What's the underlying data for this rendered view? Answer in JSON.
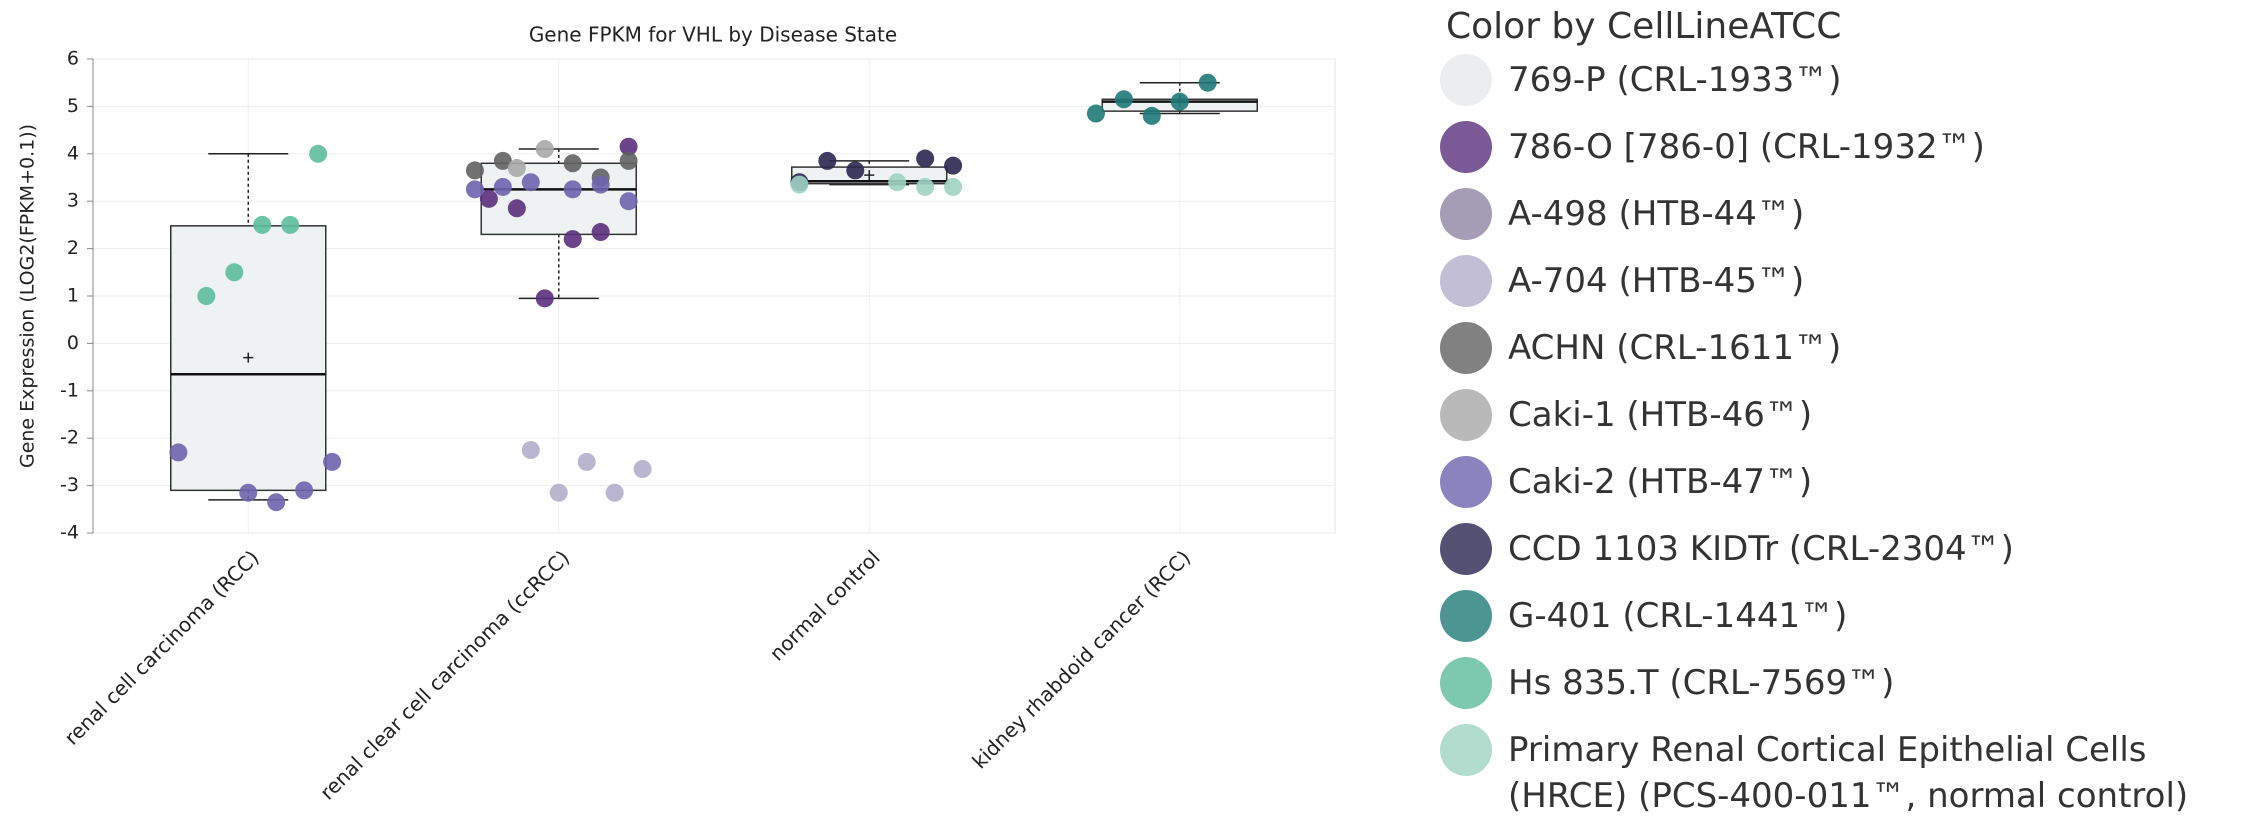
{
  "chart_data": {
    "type": "box",
    "title": "Gene FPKM for VHL by Disease State",
    "y_label": "Gene Expression (LOG2(FPKM+0.1))",
    "legend_title": "Color by CellLineATCC",
    "categories": [
      "renal cell carcinoma (RCC)",
      "renal clear cell carcinoma (ccRCC)",
      "normal control",
      "kidney rhabdoid cancer (RCC)"
    ],
    "boxes": [
      {
        "whislo": -3.3,
        "q1": -3.1,
        "med": -0.65,
        "q3": 2.48,
        "whishi": 4.0,
        "mean": -0.3
      },
      {
        "whislo": 0.95,
        "q1": 2.3,
        "med": 3.25,
        "q3": 3.8,
        "whishi": 4.1
      },
      {
        "whislo": 3.35,
        "q1": 3.37,
        "med": 3.42,
        "q3": 3.72,
        "whishi": 3.85,
        "mean": 3.55
      },
      {
        "whislo": 4.85,
        "q1": 4.9,
        "med": 5.1,
        "q3": 5.15,
        "whishi": 5.5,
        "mean": 5.1
      }
    ],
    "series": [
      {
        "name": "769-P (CRL-1933™)",
        "color": "#e6e8eb",
        "points": []
      },
      {
        "name": "786-O [786-0] (CRL-1932™)",
        "color": "#5a2f7c",
        "points": [
          {
            "category": 1,
            "value": 4.15
          },
          {
            "category": 1,
            "value": 2.35
          },
          {
            "category": 1,
            "value": 2.2
          },
          {
            "category": 1,
            "value": 0.95
          },
          {
            "category": 1,
            "value": 2.85
          },
          {
            "category": 1,
            "value": 3.05
          }
        ]
      },
      {
        "name": "A-498 (HTB-44™)",
        "color": "#8f84a2",
        "points": []
      },
      {
        "name": "A-704 (HTB-45™)",
        "color": "#b3aecb",
        "points": [
          {
            "category": 1,
            "value": -2.65
          },
          {
            "category": 1,
            "value": -3.15
          },
          {
            "category": 1,
            "value": -2.5
          },
          {
            "category": 1,
            "value": -3.15
          },
          {
            "category": 1,
            "value": -2.25
          }
        ]
      },
      {
        "name": "ACHN (CRL-1611™)",
        "color": "#626262",
        "points": [
          {
            "category": 1,
            "value": 3.85
          },
          {
            "category": 1,
            "value": 3.65
          },
          {
            "category": 1,
            "value": 3.85
          },
          {
            "category": 1,
            "value": 3.5
          },
          {
            "category": 1,
            "value": 3.8
          }
        ]
      },
      {
        "name": "Caki-1 (HTB-46™)",
        "color": "#a8a8a8",
        "points": [
          {
            "category": 1,
            "value": 4.1
          },
          {
            "category": 1,
            "value": 3.7
          }
        ]
      },
      {
        "name": "Caki-2 (HTB-47™)",
        "color": "#6d64ad",
        "points": [
          {
            "category": 0,
            "value": -2.3
          },
          {
            "category": 0,
            "value": -2.5
          },
          {
            "category": 0,
            "value": -3.1
          },
          {
            "category": 0,
            "value": -3.35
          },
          {
            "category": 0,
            "value": -3.15
          },
          {
            "category": 1,
            "value": 3.4
          },
          {
            "category": 1,
            "value": 3.3
          },
          {
            "category": 1,
            "value": 3.25
          },
          {
            "category": 1,
            "value": 3.0
          },
          {
            "category": 1,
            "value": 3.35
          },
          {
            "category": 1,
            "value": 3.25
          }
        ]
      },
      {
        "name": "CCD 1103 KIDTr (CRL-2304™)",
        "color": "#2b2650",
        "points": [
          {
            "category": 2,
            "value": 3.65
          },
          {
            "category": 2,
            "value": 3.85
          },
          {
            "category": 2,
            "value": 3.4
          },
          {
            "category": 2,
            "value": 3.75
          },
          {
            "category": 2,
            "value": 3.9
          }
        ]
      },
      {
        "name": "G-401 (CRL-1441™)",
        "color": "#1f7a78",
        "points": [
          {
            "category": 3,
            "value": 5.5
          },
          {
            "category": 3,
            "value": 5.1
          },
          {
            "category": 3,
            "value": 4.8
          },
          {
            "category": 3,
            "value": 5.15
          },
          {
            "category": 3,
            "value": 4.85
          }
        ]
      },
      {
        "name": "Hs 835.T (CRL-7569™)",
        "color": "#5cbc9c",
        "points": [
          {
            "category": 0,
            "value": 4.0
          },
          {
            "category": 0,
            "value": 2.5
          },
          {
            "category": 0,
            "value": 2.5
          },
          {
            "category": 0,
            "value": 1.5
          },
          {
            "category": 0,
            "value": 1.0
          }
        ]
      },
      {
        "name": "Primary Renal Cortical Epithelial Cells (HRCE) (PCS-400-011™, normal control)",
        "color": "#9fd3c2",
        "points": [
          {
            "category": 2,
            "value": 3.35
          },
          {
            "category": 2,
            "value": 3.3
          },
          {
            "category": 2,
            "value": 3.3
          },
          {
            "category": 2,
            "value": 3.4
          }
        ]
      }
    ],
    "ylim": [
      -4,
      6
    ],
    "yticks": [
      -4,
      -3,
      -2,
      -1,
      0,
      1,
      2,
      3,
      4,
      5,
      6
    ],
    "grid": true
  }
}
